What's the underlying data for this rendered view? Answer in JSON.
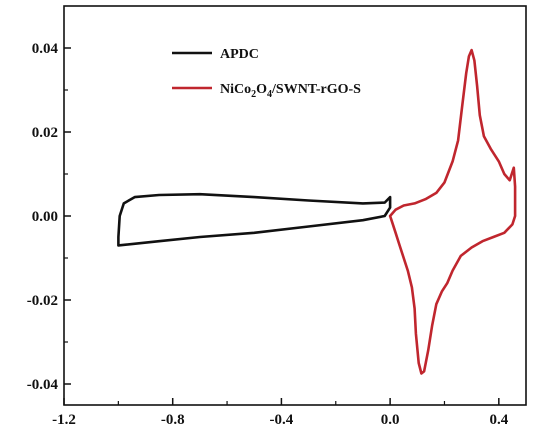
{
  "chart_data": {
    "type": "line",
    "title": "",
    "xlabel": "",
    "ylabel": "",
    "xlim": [
      -1.2,
      0.5
    ],
    "ylim": [
      -0.045,
      0.05
    ],
    "grid": false,
    "legend_position": "top-left",
    "x_ticks": [
      {
        "value": -1.2,
        "label": "-1.2"
      },
      {
        "value": -0.8,
        "label": "-0.8"
      },
      {
        "value": -0.4,
        "label": "-0.4"
      },
      {
        "value": 0.0,
        "label": "0.0"
      },
      {
        "value": 0.4,
        "label": "0.4"
      }
    ],
    "y_ticks": [
      {
        "value": 0.04,
        "label": "0.04"
      },
      {
        "value": 0.02,
        "label": "0.02"
      },
      {
        "value": 0.0,
        "label": "0.00"
      },
      {
        "value": -0.02,
        "label": "-0.02"
      },
      {
        "value": -0.04,
        "label": "-0.04"
      }
    ],
    "series": [
      {
        "name": "APDC",
        "color": "#111111",
        "points": [
          [
            -1.0,
            -0.007
          ],
          [
            -1.0,
            -0.005
          ],
          [
            -0.995,
            0.0
          ],
          [
            -0.98,
            0.003
          ],
          [
            -0.94,
            0.0045
          ],
          [
            -0.85,
            0.005
          ],
          [
            -0.7,
            0.0052
          ],
          [
            -0.5,
            0.0045
          ],
          [
            -0.3,
            0.0037
          ],
          [
            -0.1,
            0.003
          ],
          [
            -0.02,
            0.0032
          ],
          [
            0.0,
            0.0045
          ],
          [
            0.0,
            0.002
          ],
          [
            -0.02,
            0.0
          ],
          [
            -0.1,
            -0.001
          ],
          [
            -0.3,
            -0.0025
          ],
          [
            -0.5,
            -0.004
          ],
          [
            -0.7,
            -0.005
          ],
          [
            -0.85,
            -0.006
          ],
          [
            -1.0,
            -0.007
          ]
        ]
      },
      {
        "name": "NiCo2O4/SWNT-rGO-S",
        "color": "#c0262e",
        "points": [
          [
            0.0,
            0.0
          ],
          [
            0.02,
            0.0015
          ],
          [
            0.05,
            0.0025
          ],
          [
            0.09,
            0.003
          ],
          [
            0.13,
            0.004
          ],
          [
            0.17,
            0.0055
          ],
          [
            0.2,
            0.008
          ],
          [
            0.23,
            0.013
          ],
          [
            0.25,
            0.018
          ],
          [
            0.265,
            0.026
          ],
          [
            0.28,
            0.034
          ],
          [
            0.29,
            0.038
          ],
          [
            0.3,
            0.0395
          ],
          [
            0.31,
            0.037
          ],
          [
            0.32,
            0.031
          ],
          [
            0.33,
            0.024
          ],
          [
            0.345,
            0.019
          ],
          [
            0.37,
            0.016
          ],
          [
            0.4,
            0.013
          ],
          [
            0.42,
            0.01
          ],
          [
            0.44,
            0.0085
          ],
          [
            0.455,
            0.0115
          ],
          [
            0.46,
            0.007
          ],
          [
            0.46,
            0.0
          ],
          [
            0.45,
            -0.002
          ],
          [
            0.42,
            -0.004
          ],
          [
            0.38,
            -0.005
          ],
          [
            0.34,
            -0.006
          ],
          [
            0.3,
            -0.0075
          ],
          [
            0.26,
            -0.0095
          ],
          [
            0.23,
            -0.013
          ],
          [
            0.21,
            -0.016
          ],
          [
            0.19,
            -0.018
          ],
          [
            0.17,
            -0.021
          ],
          [
            0.155,
            -0.026
          ],
          [
            0.14,
            -0.032
          ],
          [
            0.125,
            -0.037
          ],
          [
            0.115,
            -0.0375
          ],
          [
            0.105,
            -0.035
          ],
          [
            0.095,
            -0.028
          ],
          [
            0.09,
            -0.022
          ],
          [
            0.08,
            -0.017
          ],
          [
            0.065,
            -0.013
          ],
          [
            0.05,
            -0.01
          ],
          [
            0.035,
            -0.007
          ],
          [
            0.02,
            -0.004
          ],
          [
            0.005,
            -0.001
          ],
          [
            0.0,
            0.0
          ]
        ]
      }
    ]
  },
  "legend": {
    "items": [
      {
        "label": "APDC",
        "color": "#111111"
      },
      {
        "label_main": "NiCo",
        "sub1": "2",
        "mid": "O",
        "sub2": "4",
        "rest": "/SWNT-rGO-S",
        "color": "#c0262e"
      }
    ]
  }
}
